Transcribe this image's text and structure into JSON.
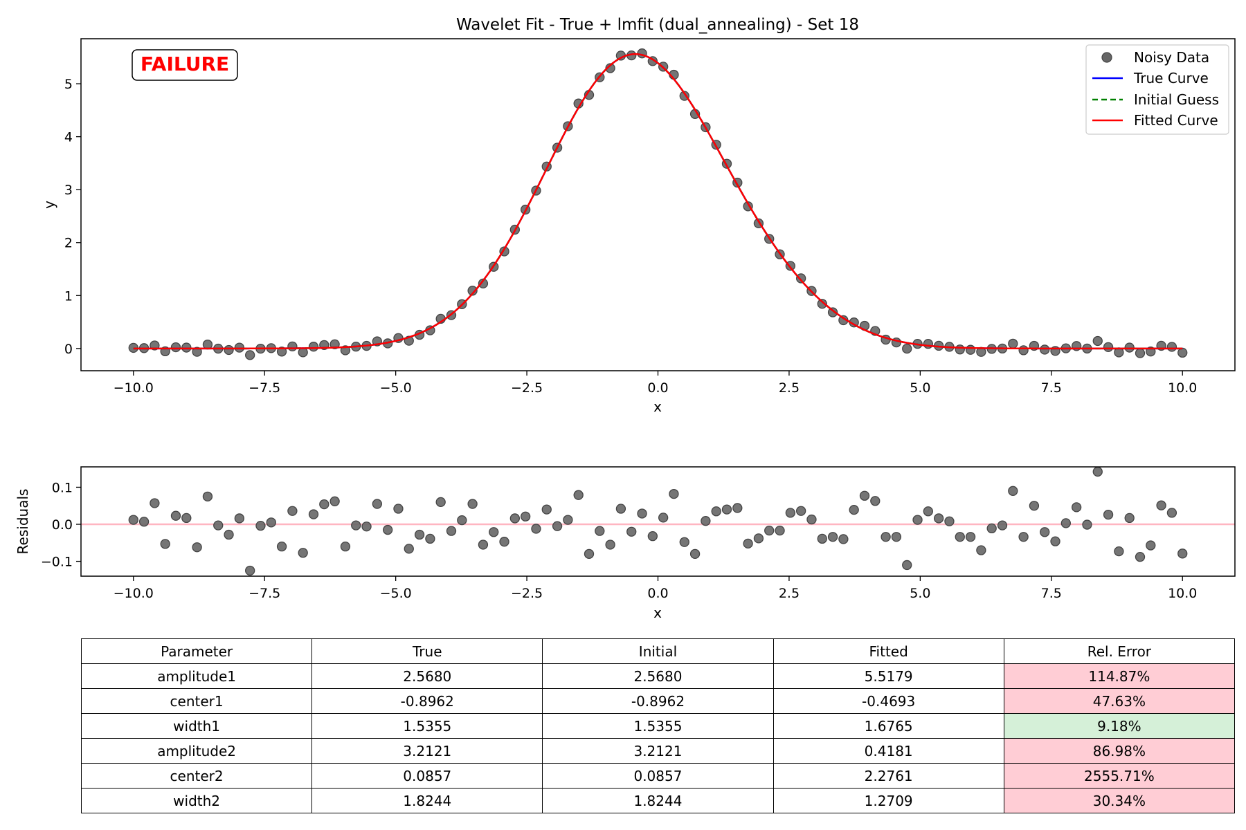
{
  "title": "Wavelet Fit - True + lmfit (dual_annealing) - Set 18",
  "status_label": "FAILURE",
  "colors": {
    "noisy": "#666666",
    "true_curve": "#0000ff",
    "initial_guess": "#008000",
    "fitted_curve": "#ff0000",
    "failure_text": "#ff0000",
    "residual_zero_line": "#ffb6c1",
    "error_bad": "#ffcdd5",
    "error_good": "#d5f0d8"
  },
  "chart_data": [
    {
      "type": "line",
      "name": "main-fit",
      "title": "Wavelet Fit - True + lmfit (dual_annealing) - Set 18",
      "xlabel": "x",
      "ylabel": "y",
      "xlim": [
        -11.0,
        11.0
      ],
      "ylim": [
        -0.42,
        5.85
      ],
      "xticks": [
        -10.0,
        -7.5,
        -5.0,
        -2.5,
        0.0,
        2.5,
        5.0,
        7.5,
        10.0
      ],
      "xtick_labels": [
        "−10.0",
        "−7.5",
        "−5.0",
        "−2.5",
        "0.0",
        "2.5",
        "5.0",
        "7.5",
        "10.0"
      ],
      "yticks": [
        0,
        1,
        2,
        3,
        4,
        5
      ],
      "ytick_labels": [
        "0",
        "1",
        "2",
        "3",
        "4",
        "5"
      ],
      "grid": false,
      "legend_position": "top-right",
      "legend": [
        "Noisy Data",
        "True Curve",
        "Initial Guess",
        "Fitted Curve"
      ],
      "x_range": [
        -10.0,
        10.0
      ],
      "n_points": 100,
      "fitted_params": {
        "amplitude1": 5.5179,
        "center1": -0.4693,
        "width1": 1.6765,
        "amplitude2": 0.4181,
        "center2": 2.2761,
        "width2": 1.2709
      },
      "residuals": [
        0.012,
        0.007,
        0.057,
        -0.053,
        0.023,
        0.017,
        -0.062,
        0.075,
        -0.003,
        -0.028,
        0.016,
        -0.125,
        -0.004,
        0.005,
        -0.06,
        0.036,
        -0.077,
        0.027,
        0.054,
        0.062,
        -0.06,
        -0.003,
        -0.006,
        0.055,
        -0.015,
        0.042,
        -0.066,
        -0.028,
        -0.039,
        0.06,
        -0.018,
        0.011,
        0.055,
        -0.055,
        -0.021,
        -0.047,
        0.016,
        0.021,
        -0.012,
        0.04,
        -0.005,
        0.012,
        0.079,
        -0.08,
        -0.018,
        -0.055,
        0.042,
        -0.02,
        0.029,
        -0.032,
        0.018,
        0.082,
        -0.048,
        -0.08,
        0.009,
        0.035,
        0.04,
        0.044,
        -0.052,
        -0.038,
        -0.017,
        -0.017,
        0.031,
        0.036,
        0.013,
        -0.039,
        -0.034,
        -0.04,
        0.039,
        0.077,
        0.063,
        -0.034,
        -0.034,
        -0.11,
        0.012,
        0.035,
        0.016,
        0.008,
        -0.034,
        -0.034,
        -0.07,
        -0.011,
        -0.003,
        0.09,
        -0.034,
        0.05,
        -0.021,
        -0.046,
        0.003,
        0.046,
        -0.001,
        0.142,
        0.026,
        -0.073,
        0.017,
        -0.088,
        -0.057,
        0.051,
        0.031,
        -0.079
      ]
    },
    {
      "type": "scatter",
      "name": "residuals",
      "xlabel": "x",
      "ylabel": "Residuals",
      "xlim": [
        -11.0,
        11.0
      ],
      "ylim": [
        -0.14,
        0.155
      ],
      "xticks": [
        -10.0,
        -7.5,
        -5.0,
        -2.5,
        0.0,
        2.5,
        5.0,
        7.5,
        10.0
      ],
      "xtick_labels": [
        "−10.0",
        "−7.5",
        "−5.0",
        "−2.5",
        "0.0",
        "2.5",
        "5.0",
        "7.5",
        "10.0"
      ],
      "yticks": [
        -0.1,
        0.0,
        0.1
      ],
      "ytick_labels": [
        "−0.1",
        "0.0",
        "0.1"
      ],
      "zero_line": 0.0,
      "grid": false
    }
  ],
  "table": {
    "headers": [
      "Parameter",
      "True",
      "Initial",
      "Fitted",
      "Rel. Error"
    ],
    "rows": [
      {
        "cells": [
          "amplitude1",
          "2.5680",
          "2.5680",
          "5.5179",
          "114.87%"
        ],
        "status": "bad"
      },
      {
        "cells": [
          "center1",
          "-0.8962",
          "-0.8962",
          "-0.4693",
          "47.63%"
        ],
        "status": "bad"
      },
      {
        "cells": [
          "width1",
          "1.5355",
          "1.5355",
          "1.6765",
          "9.18%"
        ],
        "status": "good"
      },
      {
        "cells": [
          "amplitude2",
          "3.2121",
          "3.2121",
          "0.4181",
          "86.98%"
        ],
        "status": "bad"
      },
      {
        "cells": [
          "center2",
          "0.0857",
          "0.0857",
          "2.2761",
          "2555.71%"
        ],
        "status": "bad"
      },
      {
        "cells": [
          "width2",
          "1.8244",
          "1.8244",
          "1.2709",
          "30.34%"
        ],
        "status": "bad"
      }
    ]
  }
}
